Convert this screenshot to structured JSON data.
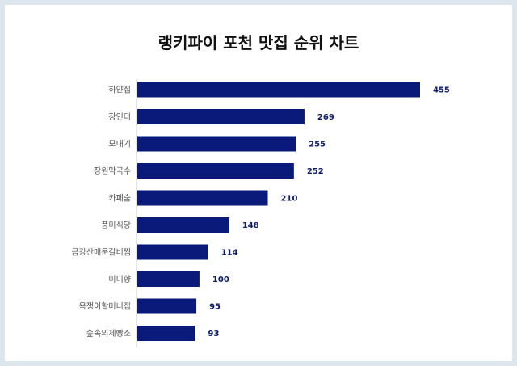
{
  "chart_data": {
    "type": "bar",
    "orientation": "horizontal",
    "title": "랭키파이 포천 맛집 순위 차트",
    "categories": [
      "하얀집",
      "장인더",
      "모내기",
      "장원막국수",
      "카페숨",
      "풍미식당",
      "금강산매운갈비찜",
      "미미향",
      "욕쟁이할머니집",
      "숲속의제빵소"
    ],
    "values": [
      455,
      269,
      255,
      252,
      210,
      148,
      114,
      100,
      95,
      93
    ],
    "bar_color": "#0a1a7a",
    "grid": false,
    "legend": "none"
  }
}
